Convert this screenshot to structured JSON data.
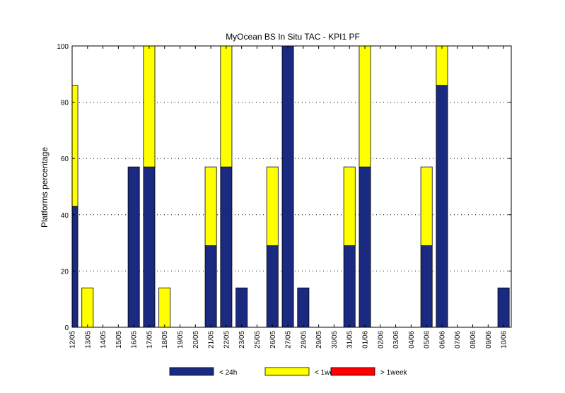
{
  "chart_data": {
    "type": "bar",
    "stacked": true,
    "title": "MyOcean  BS In Situ TAC - KPI1  PF",
    "ylabel": "Platforms percentage",
    "xlabel": "",
    "ylim": [
      0,
      100
    ],
    "yticks": [
      0,
      20,
      40,
      60,
      80,
      100
    ],
    "grid": true,
    "legend_position": "bottom",
    "categories": [
      "12/05",
      "13/05",
      "14/05",
      "15/05",
      "16/05",
      "17/05",
      "18/05",
      "19/05",
      "20/05",
      "21/05",
      "22/05",
      "23/05",
      "25/05",
      "26/05",
      "27/05",
      "28/05",
      "29/05",
      "30/05",
      "31/05",
      "01/06",
      "02/06",
      "03/06",
      "04/06",
      "05/06",
      "06/06",
      "07/06",
      "08/06",
      "09/06",
      "10/06"
    ],
    "series": [
      {
        "name": "< 24h",
        "color": "#1a2a80",
        "values": [
          43,
          0,
          0,
          0,
          57,
          57,
          0,
          0,
          0,
          29,
          57,
          14,
          0,
          29,
          100,
          14,
          0,
          0,
          29,
          57,
          0,
          0,
          0,
          29,
          86,
          0,
          0,
          0,
          14
        ]
      },
      {
        "name": "< 1week",
        "color": "#ffff00",
        "values": [
          43,
          14,
          0,
          0,
          0,
          43,
          14,
          0,
          0,
          28,
          43,
          0,
          0,
          28,
          0,
          0,
          0,
          0,
          28,
          43,
          0,
          0,
          0,
          28,
          14,
          0,
          0,
          0,
          0
        ]
      },
      {
        "name": "> 1week",
        "color": "#ff0000",
        "values": [
          0,
          0,
          0,
          0,
          0,
          0,
          0,
          0,
          0,
          0,
          0,
          0,
          0,
          0,
          0,
          0,
          0,
          0,
          0,
          0,
          0,
          0,
          0,
          0,
          0,
          0,
          0,
          0,
          0
        ]
      }
    ]
  }
}
